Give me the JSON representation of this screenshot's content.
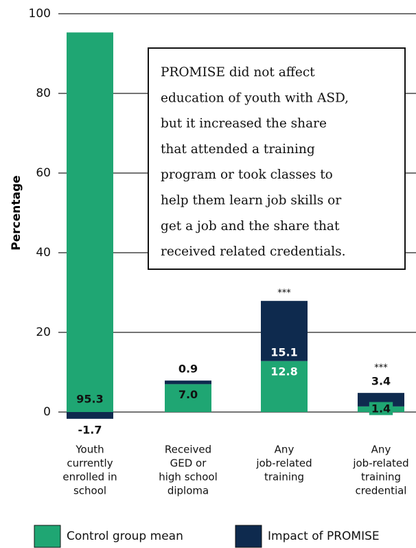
{
  "chart_data": {
    "type": "stacked_bar",
    "y_label": "Percentage",
    "categories": [
      [
        "Youth",
        "currently",
        "enrolled in",
        "school"
      ],
      [
        "Received",
        "GED or",
        "high school",
        "diploma"
      ],
      [
        "Any",
        "job-related",
        "training"
      ],
      [
        "Any",
        "job-related",
        "training",
        "credential"
      ]
    ],
    "series": [
      {
        "name": "Control group mean",
        "color": "#1fa673",
        "values": [
          95.3,
          7.0,
          12.8,
          1.4
        ],
        "value_labels": [
          "95.3",
          "7.0",
          "12.8",
          "1.4"
        ]
      },
      {
        "name": "Impact of PROMISE",
        "color": "#0e2a4e",
        "values": [
          -1.7,
          0.9,
          15.1,
          3.4
        ]
      }
    ],
    "significance": [
      null,
      null,
      "***",
      "***"
    ],
    "ylim": [
      0,
      100
    ],
    "yticks": [
      0,
      20,
      40,
      60,
      80,
      100
    ],
    "grid": true,
    "annotation": [
      "PROMISE did not affect",
      "education of youth with ASD,",
      "but it increased the share",
      "that attended a training",
      "program or took classes to",
      "help them learn job skills or",
      "get a job and the share that",
      "received related credentials."
    ]
  }
}
